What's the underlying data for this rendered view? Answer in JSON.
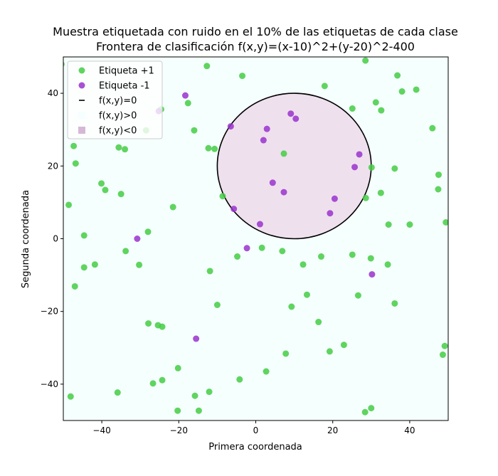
{
  "chart_data": {
    "type": "scatter",
    "title": "Muestra etiquetada con ruido en el 10% de las etiquetas de cada clase",
    "subtitle": "Frontera de clasificación f(x,y)=(x-10)^2+(y-20)^2-400",
    "xlabel": "Primera coordenada",
    "ylabel": "Segunda coordenada",
    "xlim": [
      -50,
      50
    ],
    "ylim": [
      -50,
      50
    ],
    "xticks": [
      -40,
      -20,
      0,
      20,
      40
    ],
    "yticks": [
      -40,
      -20,
      0,
      20,
      40
    ],
    "grid": false,
    "legend_position": "top-left",
    "colors": {
      "positive": "#44cc44",
      "negative": "#9933cc",
      "boundary": "#000000",
      "region_positive": "#f5fffd",
      "region_negative": "#efe0ee"
    },
    "boundary": {
      "center": [
        10,
        20
      ],
      "radius": 20
    },
    "legend": [
      {
        "label": "Etiqueta +1",
        "symbol": "positive-dot"
      },
      {
        "label": "Etiqueta -1",
        "symbol": "negative-dot"
      },
      {
        "label": "f(x,y)=0",
        "symbol": "line"
      },
      {
        "label": "f(x,y)>0",
        "symbol": "square-positive"
      },
      {
        "label": "f(x,y)<0",
        "symbol": "square-negative"
      }
    ],
    "series": [
      {
        "name": "Etiqueta +1",
        "points": [
          [
            -50.5,
            48
          ],
          [
            -12.7,
            47.5
          ],
          [
            28.5,
            49
          ],
          [
            -3.5,
            44.8
          ],
          [
            17.9,
            42
          ],
          [
            36.8,
            44.9
          ],
          [
            38,
            40.5
          ],
          [
            41.7,
            41
          ],
          [
            31.2,
            37.5
          ],
          [
            -17.6,
            37.3
          ],
          [
            25.1,
            35.8
          ],
          [
            32.6,
            35.3
          ],
          [
            -24.6,
            35.6
          ],
          [
            -16,
            29.8
          ],
          [
            -28.5,
            29.8
          ],
          [
            45.9,
            30.4
          ],
          [
            -47.3,
            25.5
          ],
          [
            -35.6,
            25.1
          ],
          [
            -34,
            24.6
          ],
          [
            -12.3,
            24.9
          ],
          [
            -10.7,
            24.7
          ],
          [
            7.3,
            23.4
          ],
          [
            -46.8,
            20.7
          ],
          [
            30.1,
            19.6
          ],
          [
            36.1,
            19.3
          ],
          [
            47.5,
            17.6
          ],
          [
            -40.1,
            15.2
          ],
          [
            -39.1,
            13.4
          ],
          [
            47.4,
            13.6
          ],
          [
            -35,
            12.3
          ],
          [
            32.5,
            12.6
          ],
          [
            -8.6,
            11.7
          ],
          [
            28.6,
            11.2
          ],
          [
            -21.5,
            8.7
          ],
          [
            -48.6,
            9.3
          ],
          [
            49.4,
            4.5
          ],
          [
            34.5,
            3.9
          ],
          [
            40,
            3.9
          ],
          [
            -28,
            1.9
          ],
          [
            -44.6,
            0.9
          ],
          [
            -33.8,
            -3.4
          ],
          [
            1.6,
            -2.5
          ],
          [
            6.9,
            -3.4
          ],
          [
            -4.8,
            -4.9
          ],
          [
            17,
            -4.9
          ],
          [
            25.1,
            -4.4
          ],
          [
            29.9,
            -5.4
          ],
          [
            -30.3,
            -7.2
          ],
          [
            -44.6,
            -7.9
          ],
          [
            -41.8,
            -7.1
          ],
          [
            12.3,
            -7.1
          ],
          [
            34.3,
            -7.1
          ],
          [
            -11.9,
            -8.9
          ],
          [
            -47,
            -13.1
          ],
          [
            13.3,
            -15.4
          ],
          [
            26.6,
            -15.6
          ],
          [
            -10,
            -18.2
          ],
          [
            9.3,
            -18.7
          ],
          [
            36.1,
            -17.8
          ],
          [
            16.3,
            -22.9
          ],
          [
            -27.9,
            -23.3
          ],
          [
            -25.4,
            -23.8
          ],
          [
            -24.3,
            -24.2
          ],
          [
            22.9,
            -29.2
          ],
          [
            49.1,
            -29.5
          ],
          [
            19.2,
            -31
          ],
          [
            7.8,
            -31.6
          ],
          [
            48.6,
            -31.9
          ],
          [
            -20.2,
            -35.6
          ],
          [
            2.7,
            -36.5
          ],
          [
            -4.2,
            -38.7
          ],
          [
            -24.3,
            -38.9
          ],
          [
            -26.7,
            -39.8
          ],
          [
            -35.9,
            -42.3
          ],
          [
            -12.1,
            -42.1
          ],
          [
            -15.8,
            -43.2
          ],
          [
            -48.1,
            -43.4
          ],
          [
            30,
            -46.6
          ],
          [
            -20.3,
            -47.3
          ],
          [
            -14.8,
            -47.3
          ],
          [
            28.4,
            -47.7
          ]
        ]
      },
      {
        "name": "Etiqueta -1",
        "points": [
          [
            -18.3,
            39.4
          ],
          [
            9.1,
            34.4
          ],
          [
            10.4,
            33
          ],
          [
            -6.5,
            30.9
          ],
          [
            2.9,
            30.2
          ],
          [
            2,
            27.1
          ],
          [
            26.9,
            23.2
          ],
          [
            25.7,
            19.7
          ],
          [
            4.4,
            15.4
          ],
          [
            7.3,
            12.8
          ],
          [
            20.5,
            11
          ],
          [
            -5.7,
            8.2
          ],
          [
            19.3,
            7
          ],
          [
            1.1,
            4
          ],
          [
            -30.8,
            0
          ],
          [
            -2.3,
            -2.6
          ],
          [
            30.2,
            -9.8
          ],
          [
            -15.5,
            -27.5
          ],
          [
            -25.2,
            35.1
          ]
        ]
      }
    ]
  }
}
